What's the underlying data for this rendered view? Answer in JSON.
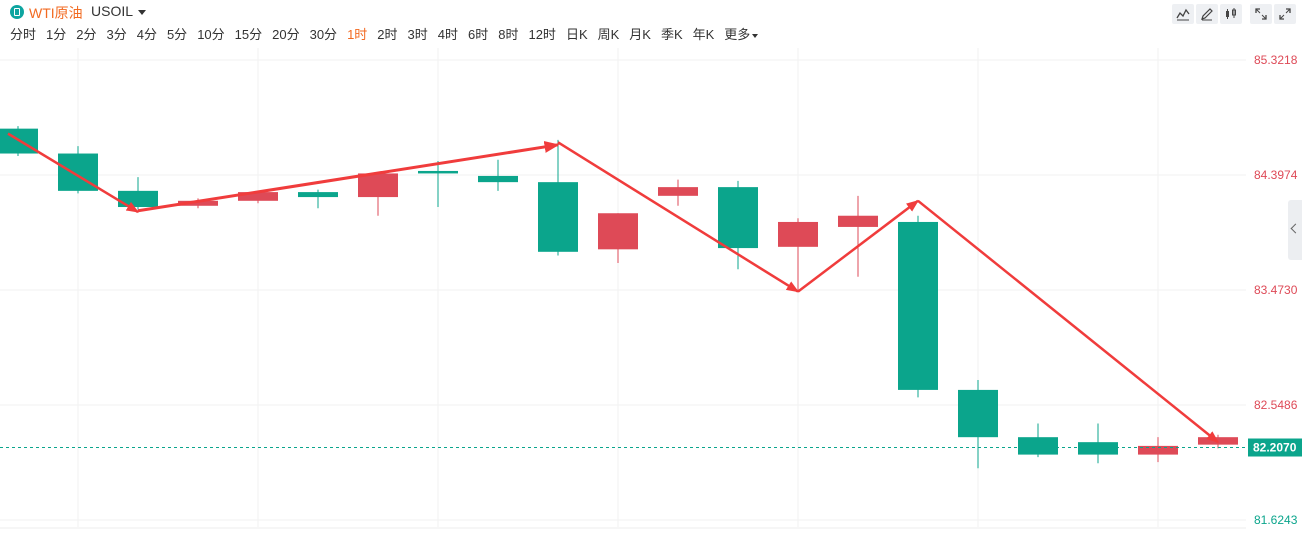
{
  "symbol": {
    "name": "WTI原油",
    "code": "USOIL"
  },
  "periods": [
    "分时",
    "1分",
    "2分",
    "3分",
    "4分",
    "5分",
    "10分",
    "15分",
    "20分",
    "30分",
    "1时",
    "2时",
    "3时",
    "4时",
    "6时",
    "8时",
    "12时",
    "日K",
    "周K",
    "月K",
    "季K",
    "年K"
  ],
  "active_period": "1时",
  "more_label": "更多",
  "toolbar_icons": [
    "indicator-icon",
    "draw-icon",
    "candle-type-icon",
    "fullscreen-icon"
  ],
  "colors": {
    "up": "#0ba58c",
    "down": "#de4a57",
    "arrow": "#f03c3c",
    "accent": "#f26a21"
  },
  "chart_data": {
    "type": "candlestick",
    "axis_labels": [
      "85.3218",
      "84.3974",
      "83.4730",
      "82.5486",
      "81.6243"
    ],
    "ylim": [
      81.6243,
      85.3218
    ],
    "current_price": "82.2070",
    "candles": [
      {
        "o": 84.77,
        "c": 84.57,
        "h": 84.79,
        "l": 84.55
      },
      {
        "o": 84.57,
        "c": 84.27,
        "h": 84.63,
        "l": 84.25
      },
      {
        "o": 84.27,
        "c": 84.14,
        "h": 84.38,
        "l": 84.12
      },
      {
        "o": 84.15,
        "c": 84.19,
        "h": 84.21,
        "l": 84.13
      },
      {
        "o": 84.19,
        "c": 84.26,
        "h": 84.26,
        "l": 84.17
      },
      {
        "o": 84.26,
        "c": 84.22,
        "h": 84.28,
        "l": 84.13
      },
      {
        "o": 84.22,
        "c": 84.41,
        "h": 84.41,
        "l": 84.07
      },
      {
        "o": 84.43,
        "c": 84.41,
        "h": 84.51,
        "l": 84.14
      },
      {
        "o": 84.39,
        "c": 84.34,
        "h": 84.52,
        "l": 84.27
      },
      {
        "o": 84.34,
        "c": 83.78,
        "h": 84.68,
        "l": 83.75
      },
      {
        "o": 83.8,
        "c": 84.09,
        "h": 84.09,
        "l": 83.69
      },
      {
        "o": 84.23,
        "c": 84.3,
        "h": 84.36,
        "l": 84.15
      },
      {
        "o": 84.3,
        "c": 83.81,
        "h": 84.35,
        "l": 83.64
      },
      {
        "o": 83.82,
        "c": 84.02,
        "h": 84.05,
        "l": 83.46
      },
      {
        "o": 83.98,
        "c": 84.07,
        "h": 84.23,
        "l": 83.58
      },
      {
        "o": 84.02,
        "c": 82.67,
        "h": 84.07,
        "l": 82.61
      },
      {
        "o": 82.67,
        "c": 82.29,
        "h": 82.75,
        "l": 82.04
      },
      {
        "o": 82.29,
        "c": 82.15,
        "h": 82.4,
        "l": 82.13
      },
      {
        "o": 82.25,
        "c": 82.15,
        "h": 82.4,
        "l": 82.08
      },
      {
        "o": 82.15,
        "c": 82.22,
        "h": 82.29,
        "l": 82.09
      },
      {
        "o": 82.23,
        "c": 82.29,
        "h": 82.31,
        "l": 82.2
      }
    ],
    "trend_arrows": [
      {
        "from": [
          0,
          84.73
        ],
        "to": [
          2,
          84.1
        ]
      },
      {
        "from": [
          2,
          84.11
        ],
        "to": [
          9,
          84.64
        ],
        "head": "thick"
      },
      {
        "from": [
          9,
          84.66
        ],
        "to": [
          13,
          83.46
        ]
      },
      {
        "from": [
          13,
          83.46
        ],
        "to": [
          15,
          84.19
        ]
      },
      {
        "from": [
          15,
          84.19
        ],
        "to": [
          20,
          82.25
        ]
      }
    ]
  }
}
